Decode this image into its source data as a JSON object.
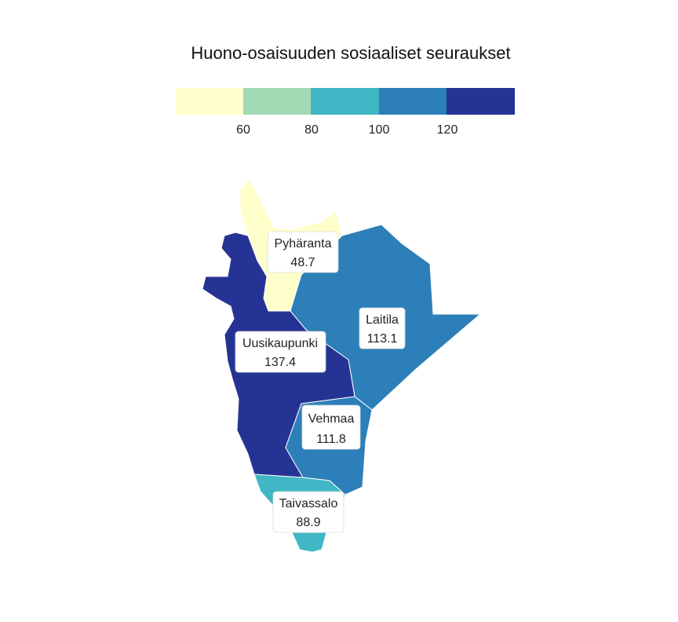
{
  "title": "Huono-osaisuuden sosiaaliset seuraukset",
  "legend": {
    "bins": [
      {
        "color": "#ffffcc"
      },
      {
        "color": "#a1dab4"
      },
      {
        "color": "#41b6c4"
      },
      {
        "color": "#2c7fb8"
      },
      {
        "color": "#253494"
      }
    ],
    "ticks": [
      "60",
      "80",
      "100",
      "120"
    ]
  },
  "regions": [
    {
      "name": "Pyhäranta",
      "value": "48.7",
      "color": "#ffffcc"
    },
    {
      "name": "Laitila",
      "value": "113.1",
      "color": "#2c7fb8"
    },
    {
      "name": "Uusikaupunki",
      "value": "137.4",
      "color": "#253494"
    },
    {
      "name": "Vehmaa",
      "value": "111.8",
      "color": "#2c7fb8"
    },
    {
      "name": "Taivassalo",
      "value": "88.9",
      "color": "#41b6c4"
    }
  ]
}
